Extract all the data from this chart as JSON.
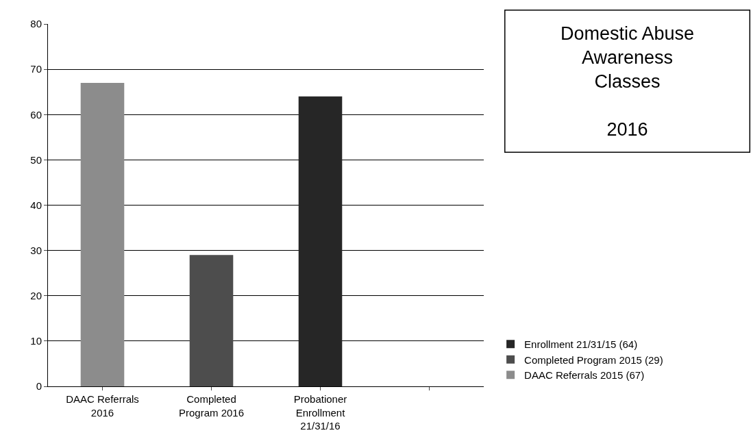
{
  "chart_data": {
    "type": "bar",
    "title": "Domestic Abuse\nAwareness\nClasses\n\n2016",
    "categories": [
      "DAAC Referrals 2016",
      "Completed Program 2016",
      "Probationer Enrollment 21/31/16",
      null
    ],
    "series": [
      {
        "name": "DAAC Referrals 2015 (67)",
        "color": "#8c8c8c",
        "values": [
          67,
          null,
          null,
          null
        ]
      },
      {
        "name": "Completed Program 2015 (29)",
        "color": "#4d4d4d",
        "values": [
          null,
          29,
          null,
          null
        ]
      },
      {
        "name": "Enrollment 21/31/15 (64)",
        "color": "#262626",
        "values": [
          null,
          null,
          64,
          null
        ]
      }
    ],
    "ylim": [
      0,
      80
    ],
    "yticks": [
      0,
      10,
      20,
      30,
      40,
      50,
      60,
      70,
      80
    ],
    "grid": "y",
    "legend": "right"
  }
}
